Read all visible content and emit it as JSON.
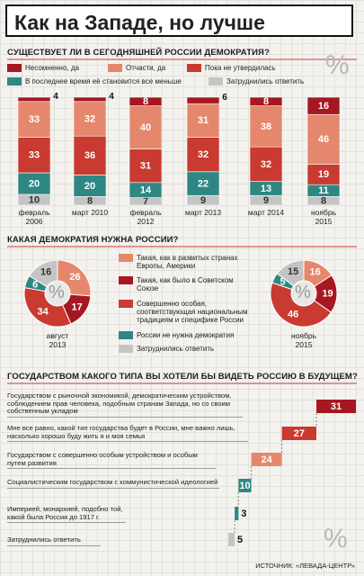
{
  "title": "Как на Западе, но лучше",
  "source": "ИСТОЧНИК: «ЛЕВАДА-ЦЕНТР»",
  "chart_data": [
    {
      "type": "bar",
      "stacked": true,
      "title": "СУЩЕСТВУЕТ ЛИ В СЕГОДНЯШНЕЙ РОССИИ ДЕМОКРАТИЯ?",
      "unit_symbol": "%",
      "categories": [
        "февраль 2006",
        "март 2010",
        "февраль 2012",
        "март 2013",
        "март 2014",
        "ноябрь 2015"
      ],
      "series": [
        {
          "name": "Несомненно, да",
          "color": "#a51822",
          "values": [
            4,
            4,
            8,
            6,
            8,
            16
          ]
        },
        {
          "name": "Отчасти, да",
          "color": "#e5876c",
          "values": [
            33,
            32,
            40,
            31,
            38,
            46
          ]
        },
        {
          "name": "Пока не утвердилась",
          "color": "#c93a30",
          "values": [
            33,
            36,
            31,
            32,
            32,
            19
          ]
        },
        {
          "name": "В последнее время её становится все меньше",
          "color": "#2e8783",
          "values": [
            20,
            20,
            14,
            22,
            13,
            11
          ]
        },
        {
          "name": "Затруднились ответить",
          "color": "#c4c4c4",
          "values": [
            10,
            8,
            7,
            9,
            9,
            8
          ]
        }
      ]
    },
    {
      "type": "pie",
      "donut": true,
      "title": "КАКАЯ ДЕМОКРАТИЯ НУЖНА РОССИИ?",
      "unit_symbol": "%",
      "categories": [
        "Такая, как в развитых странах Европы, Америки",
        "Такая, как было в Советском Союзе",
        "Совершенно особая, соответствующая национальным традициям и специфике России",
        "России не нужна демократия",
        "Затруднились ответить"
      ],
      "colors": [
        "#e5876c",
        "#a51822",
        "#c93a30",
        "#2e8783",
        "#c4c4c4"
      ],
      "series": [
        {
          "name": "август 2013",
          "values": [
            26,
            17,
            34,
            6,
            16
          ]
        },
        {
          "name": "ноябрь 2015",
          "values": [
            16,
            19,
            46,
            5,
            15
          ]
        }
      ]
    },
    {
      "type": "waterfall",
      "title": "ГОСУДАРСТВОМ КАКОГО ТИПА ВЫ ХОТЕЛИ БЫ ВИДЕТЬ РОССИЮ В БУДУЩЕМ?",
      "unit_symbol": "%",
      "categories": [
        "Государством с рыночной экономикой, демократическим устройством, соблюдением прав человека, подобным странам Запада, но со своим собственным укладом",
        "Мне все равно, какой тип государства будет в России, мне важно лишь, насколько хорошо буду жить я и моя семья",
        "Государством с совершенно особым устройством и особым путем развития",
        "Социалистическим государством с коммунистической идеологией",
        "Империей, монархией, подобно той, какой была Россия до 1917 г.",
        "Затруднились ответить"
      ],
      "values": [
        31,
        27,
        24,
        10,
        3,
        5
      ],
      "colors": [
        "#a51822",
        "#c93a30",
        "#e5876c",
        "#2e8783",
        "#2e8783",
        "#c4c4c4"
      ]
    }
  ]
}
